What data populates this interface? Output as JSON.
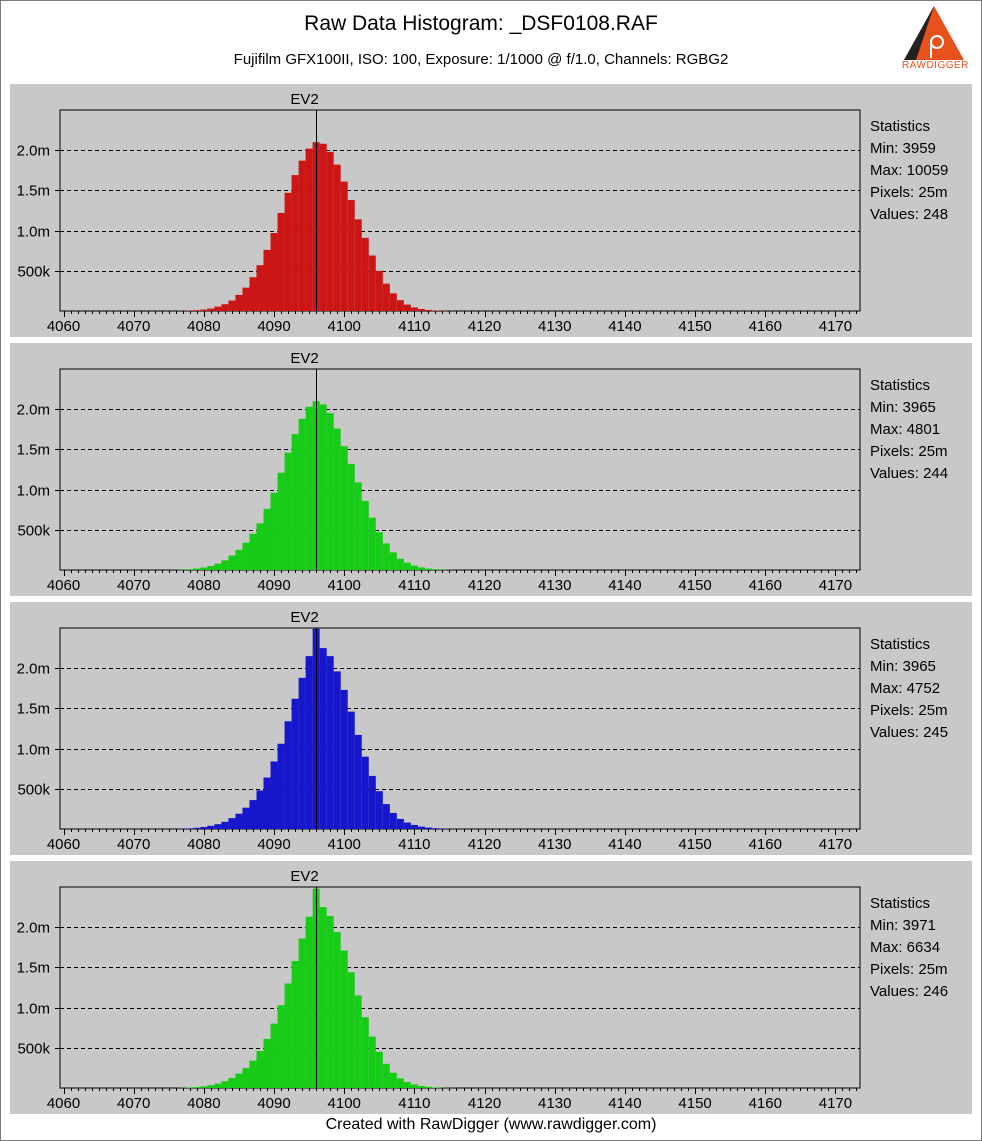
{
  "header": {
    "title": "Raw Data Histogram: _DSF0108.RAF",
    "subtitle": "Fujifilm GFX100II, ISO: 100, Exposure: 1/1000 @ f/1.0, Channels: RGBG2"
  },
  "logo": {
    "text": "RAWDIGGER",
    "icon": "rawdigger-logo-icon"
  },
  "footer": {
    "text": "Created with RawDigger (www.rawdigger.com)"
  },
  "colors": {
    "panel_bg": "#c8c8c8",
    "plot_bg": "#c8c8c8",
    "red": "#cc1616",
    "green": "#16cc16",
    "blue": "#1616cc",
    "green2": "#16cc16"
  },
  "chart_data": [
    {
      "type": "bar",
      "channel": "R",
      "color": "#cc1616",
      "ev_label": "EV2",
      "ev_x": 4096,
      "xlim": [
        4059.5,
        4173.5
      ],
      "ylim": [
        0,
        2500000
      ],
      "xticks": [
        4060,
        4070,
        4080,
        4090,
        4100,
        4110,
        4120,
        4130,
        4140,
        4150,
        4160,
        4170
      ],
      "yticks": [
        500000,
        1000000,
        1500000,
        2000000
      ],
      "ytick_labels": [
        "500k",
        "1.0m",
        "1.5m",
        "2.0m"
      ],
      "grid": "horizontal-dashed",
      "x": [
        4077,
        4078,
        4079,
        4080,
        4081,
        4082,
        4083,
        4084,
        4085,
        4086,
        4087,
        4088,
        4089,
        4090,
        4091,
        4092,
        4093,
        4094,
        4095,
        4096,
        4097,
        4098,
        4099,
        4100,
        4101,
        4102,
        4103,
        4104,
        4105,
        4106,
        4107,
        4108,
        4109,
        4110,
        4111,
        4112,
        4113,
        4114,
        4115
      ],
      "values": [
        2000,
        5000,
        10000,
        18000,
        30000,
        55000,
        85000,
        130000,
        200000,
        290000,
        420000,
        570000,
        760000,
        970000,
        1220000,
        1470000,
        1690000,
        1870000,
        2020000,
        2100000,
        2080000,
        1980000,
        1820000,
        1610000,
        1380000,
        1140000,
        910000,
        690000,
        500000,
        340000,
        220000,
        135000,
        80000,
        45000,
        25000,
        13000,
        7000,
        3000,
        1000
      ],
      "statistics": {
        "heading": "Statistics",
        "min": "Min: 3959",
        "max": "Max: 10059",
        "pixels": "Pixels: 25m",
        "values": "Values: 248"
      }
    },
    {
      "type": "bar",
      "channel": "G",
      "color": "#16cc16",
      "ev_label": "EV2",
      "ev_x": 4096,
      "xlim": [
        4059.5,
        4173.5
      ],
      "ylim": [
        0,
        2500000
      ],
      "xticks": [
        4060,
        4070,
        4080,
        4090,
        4100,
        4110,
        4120,
        4130,
        4140,
        4150,
        4160,
        4170
      ],
      "yticks": [
        500000,
        1000000,
        1500000,
        2000000
      ],
      "ytick_labels": [
        "500k",
        "1.0m",
        "1.5m",
        "2.0m"
      ],
      "grid": "horizontal-dashed",
      "x": [
        4075,
        4076,
        4077,
        4078,
        4079,
        4080,
        4081,
        4082,
        4083,
        4084,
        4085,
        4086,
        4087,
        4088,
        4089,
        4090,
        4091,
        4092,
        4093,
        4094,
        4095,
        4096,
        4097,
        4098,
        4099,
        4100,
        4101,
        4102,
        4103,
        4104,
        4105,
        4106,
        4107,
        4108,
        4109,
        4110,
        4111,
        4112,
        4113,
        4114,
        4115,
        4116
      ],
      "values": [
        1000,
        2000,
        5000,
        10000,
        18000,
        30000,
        50000,
        80000,
        120000,
        180000,
        250000,
        340000,
        450000,
        580000,
        760000,
        960000,
        1210000,
        1460000,
        1690000,
        1880000,
        2030000,
        2100000,
        2060000,
        1950000,
        1760000,
        1540000,
        1320000,
        1090000,
        860000,
        650000,
        470000,
        330000,
        220000,
        140000,
        90000,
        55000,
        32000,
        18000,
        10000,
        5000,
        2000,
        1000
      ],
      "statistics": {
        "heading": "Statistics",
        "min": "Min: 3965",
        "max": "Max: 4801",
        "pixels": "Pixels: 25m",
        "values": "Values: 244"
      }
    },
    {
      "type": "bar",
      "channel": "B",
      "color": "#1616cc",
      "ev_label": "EV2",
      "ev_x": 4096,
      "xlim": [
        4059.5,
        4173.5
      ],
      "ylim": [
        0,
        2500000
      ],
      "xticks": [
        4060,
        4070,
        4080,
        4090,
        4100,
        4110,
        4120,
        4130,
        4140,
        4150,
        4160,
        4170
      ],
      "yticks": [
        500000,
        1000000,
        1500000,
        2000000
      ],
      "ytick_labels": [
        "500k",
        "1.0m",
        "1.5m",
        "2.0m"
      ],
      "grid": "horizontal-dashed",
      "x": [
        4077,
        4078,
        4079,
        4080,
        4081,
        4082,
        4083,
        4084,
        4085,
        4086,
        4087,
        4088,
        4089,
        4090,
        4091,
        4092,
        4093,
        4094,
        4095,
        4096,
        4097,
        4098,
        4099,
        4100,
        4101,
        4102,
        4103,
        4104,
        4105,
        4106,
        4107,
        4108,
        4109,
        4110,
        4111,
        4112,
        4113,
        4114,
        4115,
        4116
      ],
      "values": [
        4000,
        8000,
        15000,
        25000,
        40000,
        60000,
        90000,
        135000,
        190000,
        265000,
        360000,
        480000,
        640000,
        840000,
        1060000,
        1340000,
        1620000,
        1880000,
        2150000,
        2490000,
        2250000,
        2150000,
        1960000,
        1730000,
        1460000,
        1170000,
        900000,
        660000,
        470000,
        310000,
        200000,
        125000,
        80000,
        50000,
        30000,
        18000,
        10000,
        5000,
        2000,
        1000
      ],
      "statistics": {
        "heading": "Statistics",
        "min": "Min: 3965",
        "max": "Max: 4752",
        "pixels": "Pixels: 25m",
        "values": "Values: 245"
      }
    },
    {
      "type": "bar",
      "channel": "G2",
      "color": "#16cc16",
      "ev_label": "EV2",
      "ev_x": 4096,
      "xlim": [
        4059.5,
        4173.5
      ],
      "ylim": [
        0,
        2500000
      ],
      "xticks": [
        4060,
        4070,
        4080,
        4090,
        4100,
        4110,
        4120,
        4130,
        4140,
        4150,
        4160,
        4170
      ],
      "yticks": [
        500000,
        1000000,
        1500000,
        2000000
      ],
      "ytick_labels": [
        "500k",
        "1.0m",
        "1.5m",
        "2.0m"
      ],
      "grid": "horizontal-dashed",
      "x": [
        4077,
        4078,
        4079,
        4080,
        4081,
        4082,
        4083,
        4084,
        4085,
        4086,
        4087,
        4088,
        4089,
        4090,
        4091,
        4092,
        4093,
        4094,
        4095,
        4096,
        4097,
        4098,
        4099,
        4100,
        4101,
        4102,
        4103,
        4104,
        4105,
        4106,
        4107,
        4108,
        4109,
        4110,
        4111,
        4112,
        4113,
        4114,
        4115
      ],
      "values": [
        3000,
        6000,
        12000,
        20000,
        35000,
        55000,
        85000,
        125000,
        180000,
        250000,
        340000,
        460000,
        610000,
        800000,
        1030000,
        1300000,
        1580000,
        1860000,
        2130000,
        2480000,
        2250000,
        2140000,
        1940000,
        1710000,
        1440000,
        1150000,
        880000,
        640000,
        450000,
        300000,
        190000,
        120000,
        75000,
        45000,
        25000,
        14000,
        7000,
        3000,
        1000
      ],
      "statistics": {
        "heading": "Statistics",
        "min": "Min: 3971",
        "max": "Max: 6634",
        "pixels": "Pixels: 25m",
        "values": "Values: 246"
      }
    }
  ]
}
